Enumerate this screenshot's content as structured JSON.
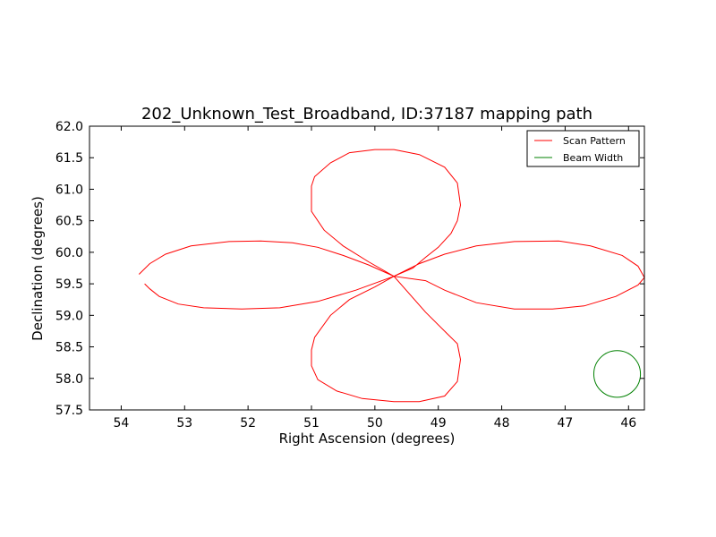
{
  "chart_data": {
    "type": "line",
    "title": "202_Unknown_Test_Broadband, ID:37187 mapping path",
    "xlabel": "Right Ascension (degrees)",
    "ylabel": "Declination (degrees)",
    "xlim": [
      54.5,
      45.75
    ],
    "ylim": [
      57.5,
      62.0
    ],
    "x_ticks": [
      54,
      53,
      52,
      51,
      50,
      49,
      48,
      47,
      46
    ],
    "x_tick_labels": [
      "54",
      "53",
      "52",
      "51",
      "50",
      "49",
      "48",
      "47",
      "46"
    ],
    "y_ticks": [
      57.5,
      58.0,
      58.5,
      59.0,
      59.5,
      60.0,
      60.5,
      61.0,
      61.5,
      62.0
    ],
    "y_tick_labels": [
      "57.5",
      "58.0",
      "58.5",
      "59.0",
      "59.5",
      "60.0",
      "60.5",
      "61.0",
      "61.5",
      "62.0"
    ],
    "grid": false,
    "legend_position": "top-right",
    "series": [
      {
        "name": "Scan Pattern",
        "color": "#ff0000",
        "x": [
          53.63,
          53.55,
          53.4,
          53.1,
          52.7,
          52.1,
          51.5,
          50.9,
          50.3,
          49.7,
          49.3,
          48.9,
          48.4,
          47.8,
          47.1,
          46.6,
          46.1,
          45.85,
          45.75,
          45.85,
          46.2,
          46.7,
          47.2,
          47.8,
          48.4,
          48.9,
          49.2,
          49.7,
          50.1,
          50.5,
          50.8,
          51.0,
          51.0,
          50.95,
          50.7,
          50.4,
          50.0,
          49.7,
          49.3,
          48.9,
          48.7,
          48.65,
          48.7,
          48.8,
          49.0,
          49.2,
          49.4,
          49.7,
          50.0,
          50.4,
          50.7,
          50.95,
          51.0,
          51.0,
          50.9,
          50.6,
          50.2,
          49.7,
          49.3,
          48.9,
          48.7,
          48.65,
          48.7,
          48.85,
          49.2,
          49.7,
          50.1,
          50.5,
          50.9,
          51.3,
          51.8,
          52.3,
          52.9,
          53.3,
          53.55,
          53.72
        ],
        "y": [
          59.5,
          59.42,
          59.3,
          59.18,
          59.12,
          59.1,
          59.12,
          59.22,
          59.4,
          59.62,
          59.82,
          59.97,
          60.1,
          60.17,
          60.18,
          60.1,
          59.95,
          59.78,
          59.6,
          59.48,
          59.3,
          59.15,
          59.1,
          59.1,
          59.2,
          59.4,
          59.55,
          59.62,
          59.85,
          60.1,
          60.35,
          60.65,
          61.05,
          61.2,
          61.42,
          61.58,
          61.63,
          61.63,
          61.55,
          61.35,
          61.1,
          60.75,
          60.5,
          60.3,
          60.08,
          59.92,
          59.75,
          59.62,
          59.45,
          59.25,
          59.0,
          58.65,
          58.45,
          58.2,
          57.98,
          57.8,
          57.68,
          57.63,
          57.63,
          57.72,
          57.95,
          58.3,
          58.55,
          58.7,
          59.05,
          59.62,
          59.8,
          59.95,
          60.08,
          60.15,
          60.18,
          60.17,
          60.1,
          59.97,
          59.82,
          59.65
        ]
      },
      {
        "name": "Beam Width",
        "color": "#008000",
        "shape": "circle",
        "center": [
          46.18,
          58.07
        ],
        "radius_dec": 0.37
      }
    ]
  }
}
